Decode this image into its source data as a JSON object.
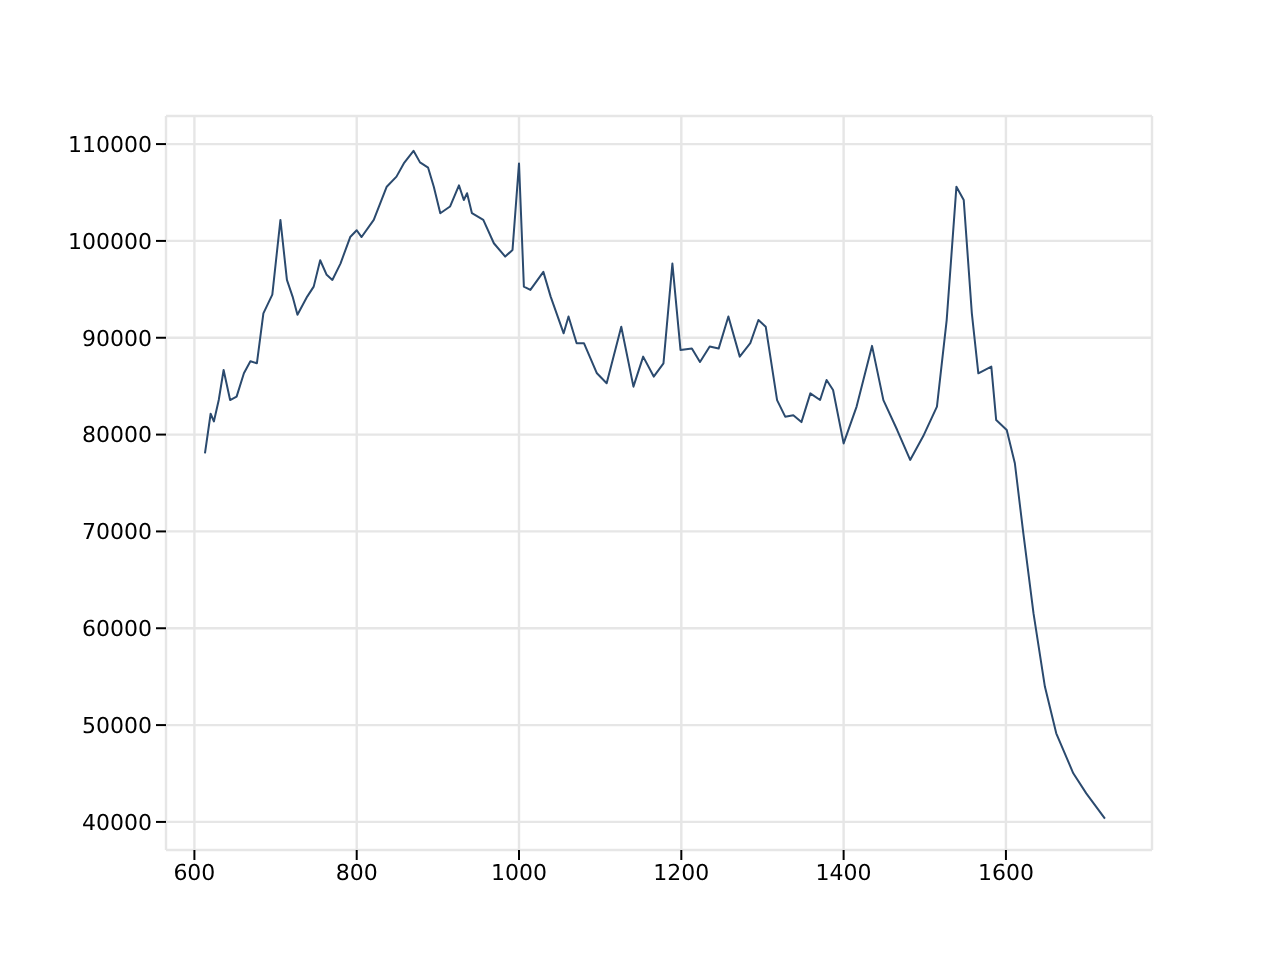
{
  "chart_data": {
    "type": "line",
    "x": [
      613,
      620,
      624,
      630,
      636,
      644,
      652,
      661,
      669,
      677,
      685,
      696,
      706,
      714,
      721,
      727,
      739,
      747,
      755,
      763,
      770,
      780,
      792,
      800,
      806,
      821,
      837,
      849,
      858,
      870,
      878,
      888,
      895,
      903,
      915,
      926,
      932,
      936,
      942,
      956,
      969,
      983,
      992,
      1000,
      1006,
      1014,
      1030,
      1039,
      1055,
      1061,
      1071,
      1080,
      1096,
      1108,
      1126,
      1141,
      1153,
      1166,
      1178,
      1189,
      1199,
      1213,
      1223,
      1235,
      1246,
      1258,
      1272,
      1285,
      1295,
      1304,
      1318,
      1328,
      1338,
      1348,
      1359,
      1371,
      1379,
      1387,
      1400,
      1416,
      1435,
      1449,
      1466,
      1482,
      1498,
      1515,
      1527,
      1539,
      1548,
      1558,
      1566,
      1582,
      1588,
      1601,
      1611,
      1621,
      1634,
      1648,
      1662,
      1683,
      1699,
      1722
    ],
    "values": [
      78060,
      82150,
      81360,
      83570,
      86670,
      83570,
      83920,
      86330,
      87570,
      87360,
      92520,
      94460,
      102170,
      95970,
      94250,
      92380,
      94250,
      95280,
      98000,
      96500,
      95970,
      97660,
      100400,
      101100,
      100400,
      102170,
      105600,
      106640,
      108000,
      109300,
      108110,
      107560,
      105600,
      102860,
      103550,
      105740,
      104230,
      104920,
      102860,
      102170,
      99760,
      98380,
      99070,
      108000,
      95280,
      94940,
      96800,
      94250,
      90460,
      92190,
      89440,
      89440,
      86330,
      85300,
      91140,
      84950,
      88050,
      85990,
      87360,
      97660,
      88740,
      88880,
      87500,
      89090,
      88880,
      92190,
      88050,
      89440,
      91830,
      91140,
      83560,
      81850,
      81990,
      81290,
      84260,
      83570,
      85640,
      84600,
      79090,
      82890,
      89160,
      83560,
      80470,
      77380,
      79820,
      82890,
      91830,
      105600,
      104230,
      92520,
      86330,
      87020,
      81500,
      80470,
      77040,
      70110,
      61530,
      53980,
      49150,
      45020,
      42950,
      40350
    ],
    "color": "#2b4a6e",
    "xlim": [
      565,
      1780
    ],
    "ylim": [
      37100,
      112900
    ],
    "xticks": [
      600,
      800,
      1000,
      1200,
      1400,
      1600
    ],
    "yticks": [
      40000,
      50000,
      60000,
      70000,
      80000,
      90000,
      100000,
      110000
    ],
    "grid": true
  }
}
